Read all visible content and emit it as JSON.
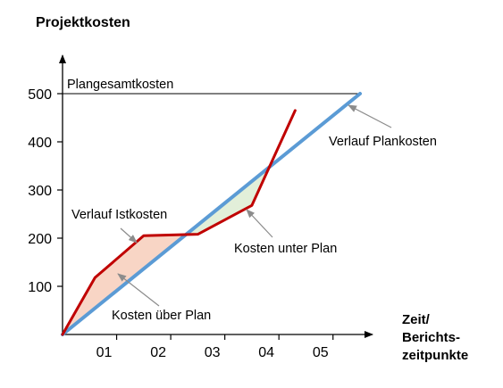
{
  "chart_data": {
    "type": "line",
    "title": "Projektkosten",
    "xlabel": [
      "Zeit/",
      "Berichts-",
      "zeitpunkte"
    ],
    "ylabel": "",
    "categories": [
      "01",
      "02",
      "03",
      "04",
      "05"
    ],
    "ylim": [
      0,
      500
    ],
    "yticks": [
      100,
      200,
      300,
      400,
      500
    ],
    "reference_line": {
      "label": "Plangesamtkosten",
      "y": 500
    },
    "series": [
      {
        "name": "Verlauf Plankosten",
        "color": "#5B9BD5",
        "points": [
          [
            0,
            0
          ],
          [
            5.5,
            500
          ]
        ]
      },
      {
        "name": "Verlauf Istkosten",
        "color": "#C00000",
        "points": [
          [
            0,
            0
          ],
          [
            0.6,
            118
          ],
          [
            1.5,
            205
          ],
          [
            2.5,
            208
          ],
          [
            3.5,
            268
          ],
          [
            4.3,
            465
          ]
        ]
      }
    ],
    "regions": [
      {
        "label": "Kosten über Plan",
        "color": "#F8D5C5"
      },
      {
        "label": "Kosten unter Plan",
        "color": "#E2EFD9"
      }
    ],
    "annotations": [
      {
        "text": "Verlauf Istkosten",
        "target": "Verlauf Istkosten"
      },
      {
        "text": "Verlauf Plankosten",
        "target": "Verlauf Plankosten"
      },
      {
        "text": "Kosten über Plan",
        "target": "Kosten über Plan"
      },
      {
        "text": "Kosten unter Plan",
        "target": "Kosten unter Plan"
      }
    ]
  }
}
